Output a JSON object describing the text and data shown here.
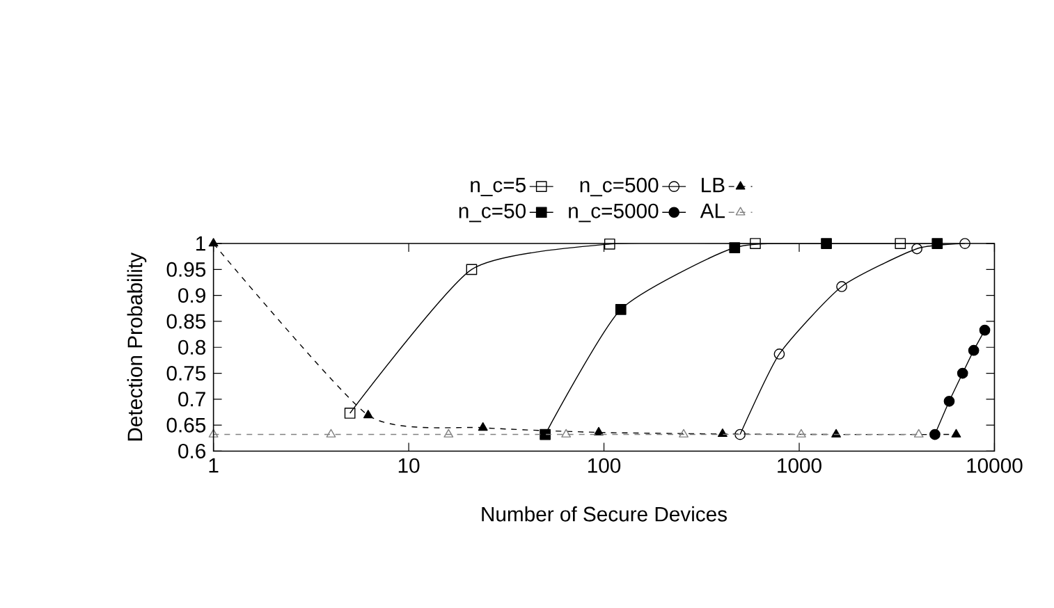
{
  "chart_data": {
    "type": "line",
    "xlabel": "Number of Secure Devices",
    "ylabel": "Detection Probability",
    "log": "x",
    "xlim": [
      1,
      10000
    ],
    "xticks": [
      1,
      10,
      100,
      1000,
      10000
    ],
    "ylim": [
      0.6,
      1
    ],
    "yticks": [
      0.6,
      0.65,
      0.7,
      0.75,
      0.8,
      0.85,
      0.9,
      0.95,
      1
    ],
    "legend": "top",
    "grid": false,
    "series": [
      {
        "name": "n_c=5",
        "color": "#000000",
        "marker": "square",
        "line_style": "solid",
        "x": [
          5,
          21,
          107,
          596,
          3296
        ],
        "values": [
          0.673,
          0.95,
          0.999,
          1.0,
          1.0
        ]
      },
      {
        "name": "n_c=50",
        "color": "#000000",
        "marker": "square",
        "line_style": "solid",
        "x": [
          50,
          122,
          467,
          1378,
          5093
        ],
        "values": [
          0.632,
          0.873,
          0.992,
          1.0,
          1.0
        ]
      },
      {
        "name": "n_c=500",
        "color": "#000000",
        "marker": "circle",
        "line_style": "solid",
        "x": [
          498,
          791,
          1651,
          4008,
          7060
        ],
        "values": [
          0.632,
          0.787,
          0.917,
          0.99,
          1.0
        ]
      },
      {
        "name": "n_c=5000",
        "color": "#000000",
        "marker": "circle",
        "line_style": "solid",
        "x": [
          4955,
          5866,
          6870,
          7830,
          8920
        ],
        "values": [
          0.632,
          0.696,
          0.75,
          0.794,
          0.833
        ]
      },
      {
        "name": "LB",
        "color": "#000000",
        "marker": "triangle",
        "line_style": "dashed",
        "x": [
          1,
          6.2,
          24,
          94,
          405,
          1546,
          6368
        ],
        "values": [
          1.0,
          0.669,
          0.645,
          0.636,
          0.633,
          0.632,
          0.632
        ]
      },
      {
        "name": "AL",
        "color": "#808080",
        "marker": "triangle",
        "line_style": "dashed",
        "x": [
          1,
          4,
          16,
          64,
          256,
          1024,
          4096
        ],
        "values": [
          0.632,
          0.632,
          0.632,
          0.632,
          0.632,
          0.632,
          0.632
        ]
      }
    ]
  }
}
